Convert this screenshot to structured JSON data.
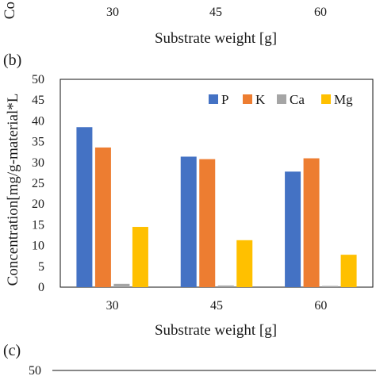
{
  "top_partial": {
    "ylabel_fragment": "Co",
    "ticks": [
      "30",
      "45",
      "60"
    ],
    "xlabel": "Substrate weight [g]"
  },
  "panel_b": {
    "label": "(b)",
    "chart_data": {
      "type": "bar",
      "categories": [
        "30",
        "45",
        "60"
      ],
      "series": [
        {
          "name": "P",
          "color": "#4472C4",
          "values": [
            38.5,
            31.4,
            27.8
          ]
        },
        {
          "name": "K",
          "color": "#ED7D31",
          "values": [
            33.6,
            30.8,
            31.0
          ]
        },
        {
          "name": "Ca",
          "color": "#A5A5A5",
          "values": [
            0.8,
            0.4,
            0.3
          ]
        },
        {
          "name": "Mg",
          "color": "#FFC000",
          "values": [
            14.5,
            11.3,
            7.8
          ]
        }
      ],
      "ylim": [
        0,
        50
      ],
      "yticks": [
        "0",
        "5",
        "10",
        "15",
        "20",
        "25",
        "30",
        "35",
        "40",
        "45",
        "50"
      ],
      "xlabel": "Substrate weight [g]",
      "ylabel": "Concentration[mg/g-material*L",
      "legend_position": "top-right",
      "grid": false
    }
  },
  "panel_c": {
    "label": "(c)",
    "first_tick": "50"
  }
}
